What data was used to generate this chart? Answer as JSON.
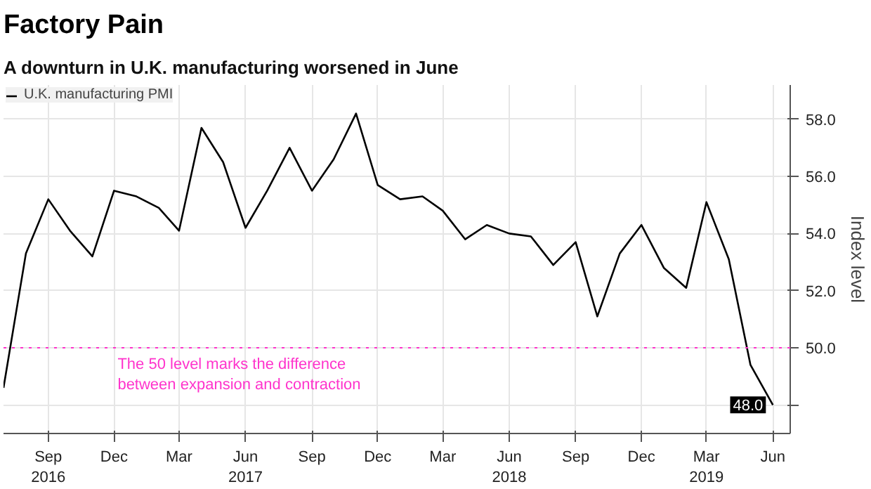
{
  "chart_data": {
    "type": "line",
    "title": "Factory Pain",
    "subtitle": "A downturn in U.K. manufacturing worsened in June",
    "ylabel": "Index level",
    "x": [
      "2016-07",
      "2016-08",
      "2016-09",
      "2016-10",
      "2016-11",
      "2016-12",
      "2017-01",
      "2017-02",
      "2017-03",
      "2017-04",
      "2017-05",
      "2017-06",
      "2017-07",
      "2017-08",
      "2017-09",
      "2017-10",
      "2017-11",
      "2017-12",
      "2018-01",
      "2018-02",
      "2018-03",
      "2018-04",
      "2018-05",
      "2018-06",
      "2018-07",
      "2018-08",
      "2018-09",
      "2018-10",
      "2018-11",
      "2018-12",
      "2019-01",
      "2019-02",
      "2019-03",
      "2019-04",
      "2019-05",
      "2019-06"
    ],
    "series": [
      {
        "name": "U.K. manufacturing PMI",
        "color": "#000000",
        "values": [
          48.6,
          53.3,
          55.2,
          54.1,
          53.2,
          55.5,
          55.3,
          54.9,
          54.1,
          57.7,
          56.5,
          54.2,
          55.5,
          57.0,
          55.5,
          56.6,
          58.2,
          55.7,
          55.2,
          55.3,
          54.8,
          53.8,
          54.3,
          54.0,
          53.9,
          52.9,
          53.7,
          51.1,
          53.3,
          54.3,
          52.8,
          52.1,
          55.1,
          53.1,
          49.4,
          48.0
        ],
        "value_labels": [
          null,
          null,
          null,
          null,
          null,
          null,
          null,
          null,
          null,
          null,
          null,
          null,
          null,
          null,
          null,
          null,
          null,
          null,
          null,
          null,
          null,
          null,
          null,
          null,
          null,
          null,
          null,
          null,
          null,
          null,
          null,
          null,
          null,
          null,
          null,
          "48.0"
        ]
      }
    ],
    "xlim": [
      "2016-07-01",
      "2019-06-25"
    ],
    "ylim": [
      47.0,
      59.2
    ],
    "xticks": [
      {
        "value": "2016-09",
        "label": "Sep\n2016"
      },
      {
        "value": "2016-12",
        "label": "Dec"
      },
      {
        "value": "2017-03",
        "label": "Mar"
      },
      {
        "value": "2017-06",
        "label": "Jun\n2017"
      },
      {
        "value": "2017-09",
        "label": "Sep"
      },
      {
        "value": "2017-12",
        "label": "Dec"
      },
      {
        "value": "2018-03",
        "label": "Mar"
      },
      {
        "value": "2018-06",
        "label": "Jun\n2018"
      },
      {
        "value": "2018-09",
        "label": "Sep"
      },
      {
        "value": "2018-12",
        "label": "Dec"
      },
      {
        "value": "2019-03",
        "label": "Mar\n2019"
      },
      {
        "value": "2019-06",
        "label": "Jun"
      }
    ],
    "yticks": [
      {
        "value": 48,
        "label": null
      },
      {
        "value": 50,
        "label": "50.0"
      },
      {
        "value": 52,
        "label": "52.0"
      },
      {
        "value": 54,
        "label": "54.0"
      },
      {
        "value": 56,
        "label": "56.0"
      },
      {
        "value": 58,
        "label": "58.0"
      }
    ],
    "ref_lines": [
      {
        "axis": "y",
        "value": 50,
        "label": "The 50 level marks the difference\nbetween expansion and contraction",
        "color": "#ff33cc",
        "line_style": "dotted"
      }
    ],
    "grid": true,
    "legend": "top left"
  }
}
